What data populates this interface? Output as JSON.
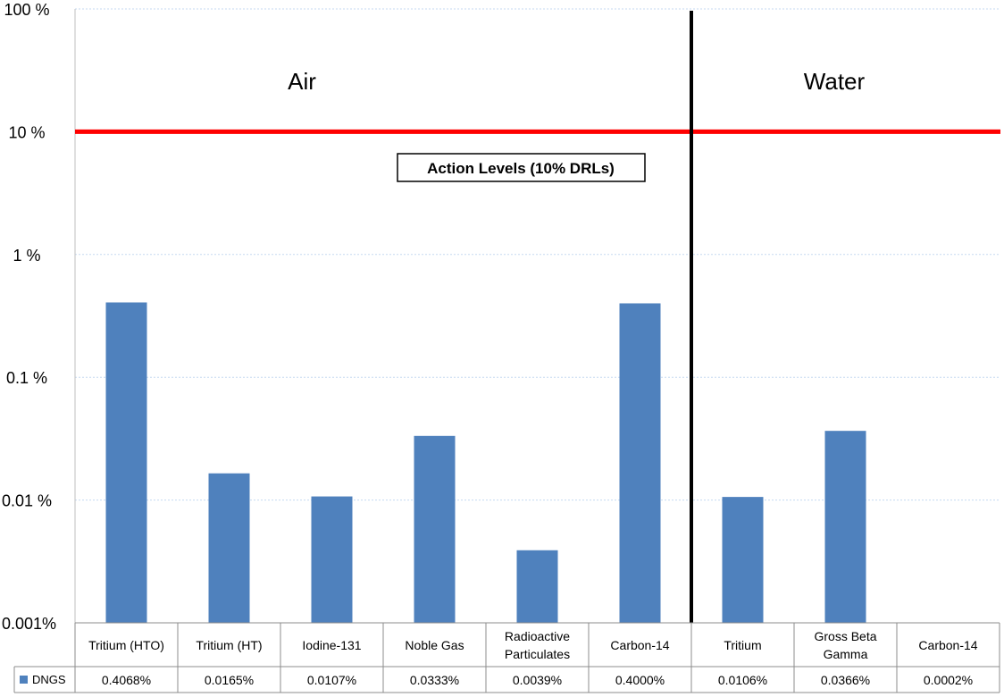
{
  "chart_data": {
    "type": "bar",
    "y_scale": "log",
    "ylim": [
      0.001,
      100
    ],
    "y_ticks": [
      "100 %",
      "10 %",
      "1 %",
      "0.1 %",
      "0.01 %",
      "0.001%"
    ],
    "categories": [
      "Tritium (HTO)",
      "Tritium (HT)",
      "Iodine-131",
      "Noble Gas",
      "Radioactive Particulates",
      "Carbon-14",
      "Tritium",
      "Gross Beta Gamma",
      "Carbon-14"
    ],
    "series": [
      {
        "name": "DNGS",
        "values": [
          0.4068,
          0.0165,
          0.0107,
          0.0333,
          0.0039,
          0.4,
          0.0106,
          0.0366,
          0.0002
        ],
        "value_labels": [
          "0.4068%",
          "0.0165%",
          "0.0107%",
          "0.0333%",
          "0.0039%",
          "0.4000%",
          "0.0106%",
          "0.0366%",
          "0.0002%"
        ],
        "color": "#4f81bd"
      }
    ],
    "groups": [
      {
        "label": "Air",
        "categories": 6
      },
      {
        "label": "Water",
        "categories": 3
      }
    ],
    "reference_line": {
      "value": 10,
      "color": "#ff0000"
    },
    "annotation": "Action Levels (10% DRLs)",
    "divider_color": "#000000",
    "grid": true,
    "legend": "data-table"
  }
}
